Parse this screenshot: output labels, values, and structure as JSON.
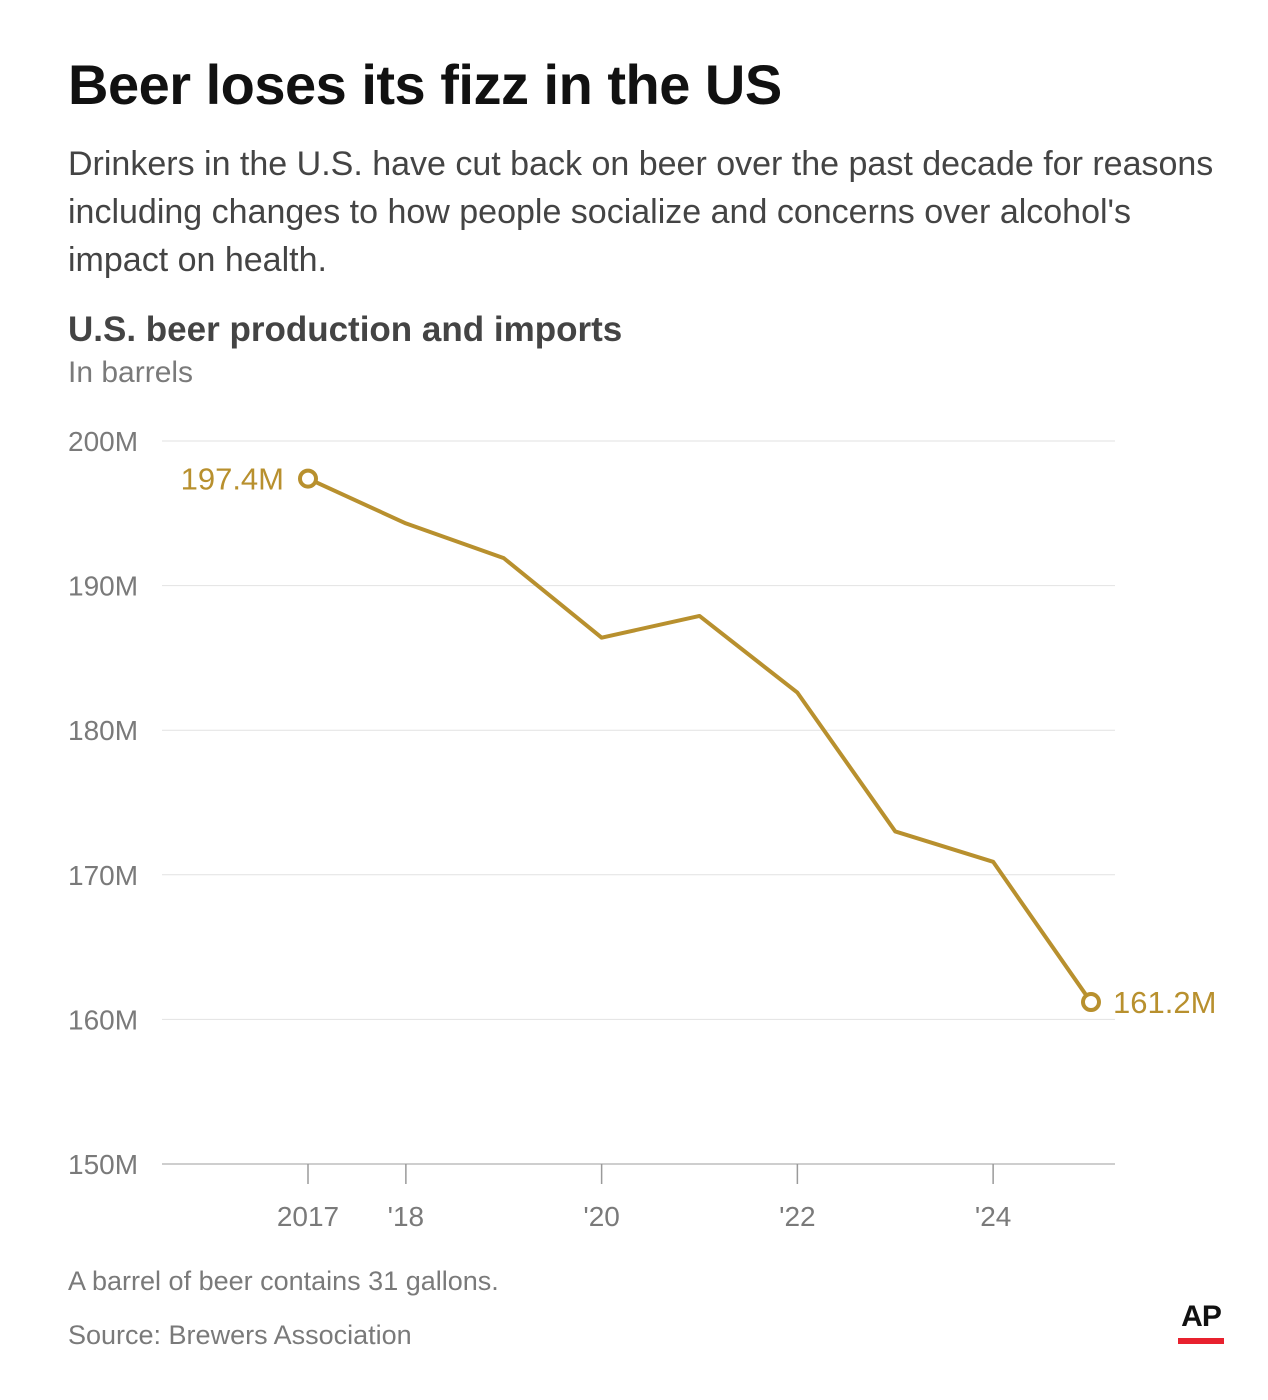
{
  "header": {
    "title": "Beer loses its fizz in the US",
    "subtitle": "Drinkers in the U.S. have cut back on beer over the past decade for reasons including changes to how people socialize and concerns over alcohol's impact on health."
  },
  "chart_data": {
    "type": "line",
    "title": "U.S. beer production and imports",
    "subtitle": "In barrels",
    "x": [
      2017,
      2018,
      2019,
      2020,
      2021,
      2022,
      2023,
      2024,
      2025
    ],
    "x_tick_values": [
      2017,
      2018,
      2020,
      2022,
      2024
    ],
    "x_tick_labels": [
      "2017",
      "'18",
      "'20",
      "'22",
      "'24"
    ],
    "series": [
      {
        "values": [
          197.4,
          194.3,
          191.9,
          186.4,
          187.9,
          182.6,
          173.0,
          170.9,
          161.2
        ]
      }
    ],
    "y_unit": "M",
    "ylim": [
      150,
      200
    ],
    "y_ticks": [
      200,
      190,
      180,
      170,
      160,
      150
    ],
    "y_tick_labels": [
      "200M",
      "190M",
      "180M",
      "170M",
      "160M",
      "150M"
    ],
    "annotations": [
      {
        "x": 2017,
        "label": "197.4M",
        "side": "left"
      },
      {
        "x": 2025,
        "label": "161.2M",
        "side": "right"
      }
    ],
    "grid": "horizontal",
    "line_color": "#b8902e"
  },
  "footer": {
    "note": "A barrel of beer contains 31 gallons.",
    "source": "Source: Brewers Association",
    "logo": "AP"
  },
  "colors": {
    "accent": "#b8902e",
    "logo_bar": "#e8212e"
  }
}
